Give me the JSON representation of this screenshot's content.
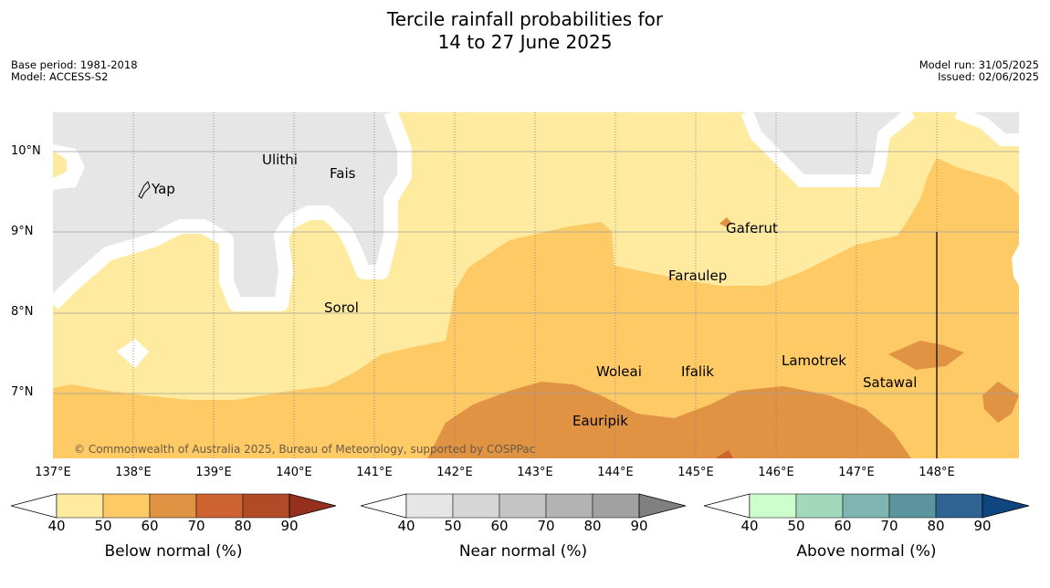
{
  "title": {
    "line1": "Tercile rainfall probabilities for",
    "line2": "14 to 27 June 2025"
  },
  "meta": {
    "base_period": "Base period: 1981-2018",
    "model": "Model: ACCESS-S2",
    "model_run": "Model run: 31/05/2025",
    "issued": "Issued: 02/06/2025"
  },
  "axes": {
    "lat_labels": [
      "10°N",
      "9°N",
      "8°N",
      "7°N"
    ],
    "lon_labels": [
      "137°E",
      "138°E",
      "139°E",
      "140°E",
      "141°E",
      "142°E",
      "143°E",
      "144°E",
      "145°E",
      "146°E",
      "147°E",
      "148°E"
    ]
  },
  "places": {
    "yap": "Yap",
    "ulithi": "Ulithi",
    "fais": "Fais",
    "sorol": "Sorol",
    "gaferut": "Gaferut",
    "faraulep": "Faraulep",
    "woleai": "Woleai",
    "ifalik": "Ifalik",
    "lamotrek": "Lamotrek",
    "satawal": "Satawal",
    "eauripik": "Eauripik"
  },
  "copyright": "© Commonwealth of Australia 2025, Bureau of Meteorology, supported by COSPPac",
  "legends": {
    "ticks": [
      "40",
      "50",
      "60",
      "70",
      "80",
      "90"
    ],
    "below": {
      "label": "Below normal (%)",
      "colors": [
        "#ffffff",
        "#feeba0",
        "#fdca66",
        "#e09443",
        "#cc6331",
        "#b14a26",
        "#95301e"
      ]
    },
    "near": {
      "label": "Near normal (%)",
      "colors": [
        "#ffffff",
        "#e6e6e6",
        "#d6d6d6",
        "#c4c4c4",
        "#b3b3b3",
        "#a1a1a1",
        "#808080"
      ]
    },
    "above": {
      "label": "Above normal (%)",
      "colors": [
        "#ffffff",
        "#ccffcc",
        "#a2d9bd",
        "#80b4b0",
        "#5b939f",
        "#2e6392",
        "#0f4680"
      ]
    }
  }
}
